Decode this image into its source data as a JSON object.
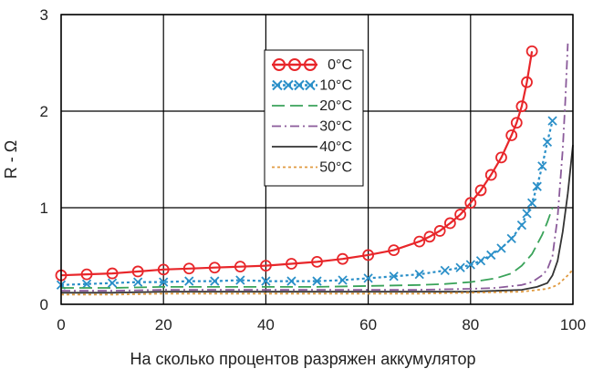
{
  "chart_data": {
    "type": "line",
    "xlabel": "На сколько процентов разряжен аккумулятор",
    "ylabel": "R - Ω",
    "xlim": [
      0,
      100
    ],
    "ylim": [
      0,
      3
    ],
    "xticks": [
      0,
      20,
      40,
      60,
      80,
      100
    ],
    "yticks": [
      0,
      1,
      2,
      3
    ],
    "grid": true,
    "legend": "top-center",
    "series": [
      {
        "name": "0°C",
        "color": "#e8262a",
        "dash": "",
        "marker": "circle",
        "x": [
          0,
          5,
          10,
          15,
          20,
          25,
          30,
          35,
          40,
          45,
          50,
          55,
          60,
          65,
          70,
          72,
          74,
          76,
          78,
          80,
          82,
          84,
          86,
          88,
          89,
          90,
          91,
          92
        ],
        "y": [
          0.3,
          0.31,
          0.32,
          0.34,
          0.36,
          0.37,
          0.38,
          0.39,
          0.4,
          0.42,
          0.44,
          0.47,
          0.51,
          0.56,
          0.65,
          0.7,
          0.76,
          0.84,
          0.93,
          1.05,
          1.18,
          1.34,
          1.52,
          1.75,
          1.88,
          2.05,
          2.3,
          2.62
        ]
      },
      {
        "name": "10°C",
        "color": "#2a8fc8",
        "dash": "3,3",
        "marker": "x",
        "x": [
          0,
          5,
          10,
          15,
          20,
          25,
          30,
          35,
          40,
          45,
          50,
          55,
          60,
          65,
          70,
          75,
          78,
          80,
          82,
          84,
          86,
          88,
          90,
          91,
          92,
          93,
          94,
          95,
          96
        ],
        "y": [
          0.2,
          0.21,
          0.22,
          0.23,
          0.23,
          0.24,
          0.24,
          0.25,
          0.24,
          0.24,
          0.24,
          0.25,
          0.27,
          0.29,
          0.31,
          0.35,
          0.38,
          0.41,
          0.45,
          0.51,
          0.58,
          0.68,
          0.82,
          0.94,
          1.05,
          1.22,
          1.43,
          1.68,
          1.9
        ]
      },
      {
        "name": "20°C",
        "color": "#3aa35a",
        "dash": "14,6",
        "x": [
          0,
          10,
          20,
          30,
          40,
          50,
          60,
          70,
          75,
          80,
          85,
          88,
          90,
          92,
          94,
          95,
          96
        ],
        "y": [
          0.17,
          0.17,
          0.18,
          0.18,
          0.18,
          0.18,
          0.19,
          0.2,
          0.21,
          0.23,
          0.27,
          0.32,
          0.4,
          0.52,
          0.72,
          0.85,
          1.0
        ]
      },
      {
        "name": "30°C",
        "color": "#8a5a9a",
        "dash": "10,4,2,4",
        "x": [
          0,
          10,
          20,
          30,
          40,
          50,
          60,
          70,
          80,
          85,
          90,
          92,
          94,
          95,
          96,
          97,
          98,
          98.5,
          99
        ],
        "y": [
          0.14,
          0.14,
          0.15,
          0.15,
          0.15,
          0.15,
          0.15,
          0.15,
          0.16,
          0.17,
          0.2,
          0.23,
          0.3,
          0.36,
          0.5,
          0.9,
          1.6,
          2.1,
          2.7
        ]
      },
      {
        "name": "40°C",
        "color": "#333333",
        "dash": "",
        "x": [
          0,
          10,
          20,
          30,
          40,
          50,
          60,
          70,
          80,
          85,
          90,
          93,
          95,
          96,
          97,
          98,
          99,
          100
        ],
        "y": [
          0.12,
          0.12,
          0.13,
          0.13,
          0.13,
          0.13,
          0.13,
          0.13,
          0.13,
          0.14,
          0.15,
          0.18,
          0.22,
          0.3,
          0.45,
          0.75,
          1.15,
          1.65
        ]
      },
      {
        "name": "50°C",
        "color": "#e09a40",
        "dash": "3,3",
        "x": [
          0,
          10,
          20,
          30,
          40,
          50,
          60,
          70,
          80,
          90,
          95,
          97,
          98,
          99,
          100
        ],
        "y": [
          0.1,
          0.1,
          0.11,
          0.11,
          0.11,
          0.11,
          0.11,
          0.11,
          0.12,
          0.13,
          0.16,
          0.2,
          0.25,
          0.3,
          0.36
        ]
      }
    ]
  }
}
